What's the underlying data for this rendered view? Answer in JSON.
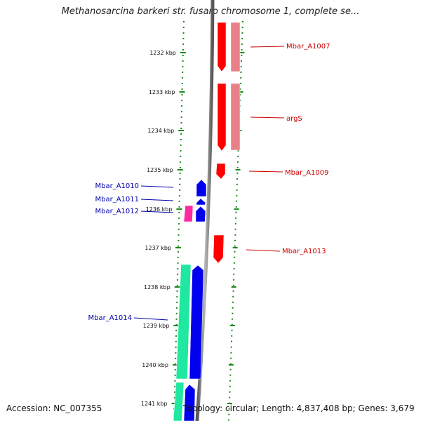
{
  "title": "Methanosarcina barkeri str. fusaro chromosome 1, complete se...",
  "footer": {
    "accession": "Accession: NC_007355",
    "summary": "Topology: circular; Length: 4,837,408 bp; Genes: 3,679"
  },
  "ruler": {
    "ticks": [
      "1232 kbp",
      "1233 kbp",
      "1234 kbp",
      "1235 kbp",
      "1236 kbp",
      "1237 kbp",
      "1238 kbp",
      "1239 kbp",
      "1240 kbp",
      "1241 kbp"
    ]
  },
  "genes": [
    {
      "name": "Mbar_A1007",
      "color": "#cc0000"
    },
    {
      "name": "argS",
      "color": "#cc0000"
    },
    {
      "name": "Mbar_A1009",
      "color": "#cc0000"
    },
    {
      "name": "Mbar_A1010",
      "color": "#0000aa"
    },
    {
      "name": "Mbar_A1011",
      "color": "#0000aa"
    },
    {
      "name": "Mbar_A1012",
      "color": "#0000aa"
    },
    {
      "name": "Mbar_A1013",
      "color": "#cc0000"
    },
    {
      "name": "Mbar_A1014",
      "color": "#0000aa"
    }
  ],
  "colors": {
    "forward_gene": "#ff0000",
    "forward_gene_light": "#e88088",
    "reverse_gene": "#0000ee",
    "pink_gene": "#ff2aa0",
    "teal_gene": "#1fe8a0",
    "ruler_dots": "#1a8a1a",
    "backbone": "#888888"
  }
}
